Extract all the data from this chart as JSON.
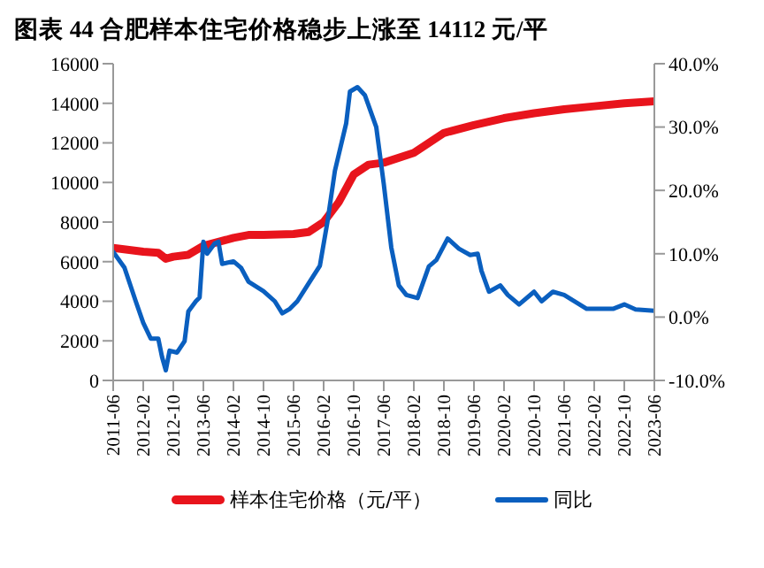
{
  "chart_data": {
    "type": "line",
    "title": "图表 44  合肥样本住宅价格稳步上涨至 14112 元/平",
    "xlim": [
      "2011-06",
      "2023-06"
    ],
    "xticks": [
      "2011-06",
      "2012-02",
      "2012-10",
      "2013-06",
      "2014-02",
      "2014-10",
      "2015-06",
      "2016-02",
      "2016-10",
      "2017-06",
      "2018-02",
      "2018-10",
      "2019-06",
      "2020-02",
      "2020-10",
      "2021-06",
      "2022-02",
      "2022-10",
      "2023-06"
    ],
    "ylim": [
      0,
      16000
    ],
    "yticks": [
      0,
      2000,
      4000,
      6000,
      8000,
      10000,
      12000,
      14000,
      16000
    ],
    "y2lim": [
      -10,
      40
    ],
    "y2ticks": [
      {
        "value": -10,
        "label": "-10.0%"
      },
      {
        "value": 0,
        "label": "0.0%"
      },
      {
        "value": 10,
        "label": "10.0%"
      },
      {
        "value": 20,
        "label": "20.0%"
      },
      {
        "value": 30,
        "label": "30.0%"
      },
      {
        "value": 40,
        "label": "40.0%"
      }
    ],
    "legend": "bottom",
    "grid": false,
    "marker": "none",
    "series": [
      {
        "name": "样本住宅价格（元/平）",
        "color": "#e8141c",
        "x": [
          "2011-06",
          "2012-02",
          "2012-06",
          "2012-08",
          "2012-10",
          "2013-02",
          "2013-06",
          "2013-10",
          "2014-02",
          "2014-06",
          "2014-10",
          "2015-06",
          "2015-10",
          "2016-02",
          "2016-06",
          "2016-10",
          "2017-02",
          "2017-06",
          "2018-02",
          "2018-10",
          "2019-06",
          "2020-02",
          "2020-10",
          "2021-06",
          "2022-02",
          "2022-10",
          "2023-06"
        ],
        "values": [
          6700,
          6500,
          6450,
          6150,
          6250,
          6350,
          6800,
          7000,
          7200,
          7350,
          7350,
          7400,
          7500,
          8000,
          9000,
          10400,
          10900,
          11000,
          11500,
          12500,
          12900,
          13250,
          13500,
          13700,
          13850,
          14000,
          14100
        ]
      },
      {
        "name": "同比",
        "color": "#0a5fbf",
        "axis": "y2",
        "x": [
          "2011-06",
          "2011-09",
          "2011-12",
          "2012-02",
          "2012-04",
          "2012-06",
          "2012-07",
          "2012-08",
          "2012-09",
          "2012-11",
          "2013-01",
          "2013-02",
          "2013-04",
          "2013-05",
          "2013-06",
          "2013-07",
          "2013-09",
          "2013-10",
          "2013-11",
          "2014-02",
          "2014-04",
          "2014-06",
          "2014-10",
          "2015-01",
          "2015-03",
          "2015-05",
          "2015-07",
          "2015-10",
          "2016-01",
          "2016-03",
          "2016-05",
          "2016-08",
          "2016-09",
          "2016-11",
          "2017-01",
          "2017-04",
          "2017-06",
          "2017-08",
          "2017-10",
          "2017-12",
          "2018-03",
          "2018-06",
          "2018-08",
          "2018-11",
          "2019-02",
          "2019-05",
          "2019-07",
          "2019-08",
          "2019-10",
          "2020-01",
          "2020-03",
          "2020-06",
          "2020-10",
          "2020-12",
          "2021-03",
          "2021-06",
          "2021-12",
          "2022-07",
          "2022-10",
          "2023-01",
          "2023-06"
        ],
        "values": [
          10.3,
          7.8,
          2.5,
          -0.9,
          -3.4,
          -3.4,
          -6.3,
          -8.4,
          -5.3,
          -5.6,
          -3.8,
          0.9,
          2.5,
          3.1,
          11.9,
          10,
          11.6,
          11.9,
          8.4,
          8.8,
          7.8,
          5.6,
          4.1,
          2.5,
          0.6,
          1.3,
          2.5,
          5.3,
          8.1,
          15,
          23.1,
          30.6,
          35.6,
          36.3,
          35,
          30,
          21,
          11,
          5,
          3.5,
          3,
          8,
          9,
          12.4,
          10.8,
          9.8,
          10,
          7.3,
          4,
          5,
          3.5,
          2,
          4,
          2.5,
          4,
          3.5,
          1.3,
          1.3,
          2,
          1.2,
          1
        ]
      }
    ]
  }
}
